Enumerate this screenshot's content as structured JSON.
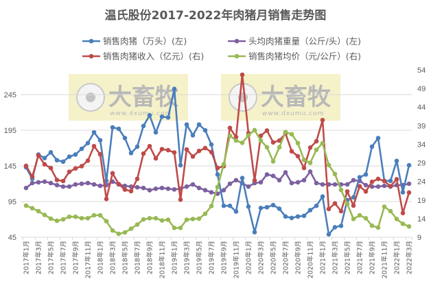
{
  "chart_data": {
    "type": "line",
    "title": "温氏股份2017-2022年肉猪月销售走势图",
    "watermark": {
      "brand": "大畜牧",
      "url": "www.dxumu.com"
    },
    "x_tick_labels": [
      "2017年1月",
      "2017年3月",
      "2017年5月",
      "2017年7月",
      "2017年9月",
      "2017年11月",
      "2018年1月",
      "2018年3月",
      "2018年5月",
      "2018年7月",
      "2018年9月",
      "2018年11月",
      "2019年1月",
      "2019年3月",
      "2019年5月",
      "2019年7月",
      "2019年9月",
      "2019年11月",
      "2020年1月",
      "2020年3月",
      "2020年5月",
      "2020年7月",
      "2020年9月",
      "2020年11月",
      "2021年1月",
      "2021年3月",
      "2021年5月",
      "2021年7月",
      "2021年9月",
      "2021年11月",
      "2022年1月",
      "2022年3月"
    ],
    "n_points": 63,
    "y_left": {
      "ticks": [
        45,
        95,
        145,
        195,
        245
      ],
      "range": [
        45,
        245
      ]
    },
    "y_right": {
      "ticks": [
        9,
        14,
        19,
        24,
        29,
        34,
        39,
        44,
        49,
        54
      ],
      "range": [
        9,
        54
      ]
    },
    "grid": true,
    "legend_placement": "top",
    "series": [
      {
        "name": "销售肉猪（万头）(左)",
        "axis": "left",
        "color": "#4a7ebb",
        "values": [
          143,
          127,
          161,
          156,
          164,
          153,
          151,
          158,
          161,
          169,
          177,
          192,
          181,
          124,
          199,
          197,
          184,
          163,
          172,
          201,
          216,
          192,
          214,
          213,
          253,
          146,
          203,
          188,
          203,
          195,
          175,
          133,
          89,
          89,
          81,
          128,
          88,
          52,
          86,
          87,
          90,
          85,
          74,
          72,
          74,
          75,
          83,
          89,
          102,
          49,
          59,
          61,
          97,
          101,
          129,
          133,
          172,
          184,
          124,
          124,
          152,
          108,
          146
        ]
      },
      {
        "name": "头均肉猪重量（公斤/头）(左)",
        "axis": "left",
        "color": "#7d60a0",
        "values": [
          114,
          121,
          122,
          123,
          121,
          118,
          116,
          116,
          119,
          120,
          121,
          119,
          117,
          118,
          123,
          119,
          117,
          116,
          115,
          114,
          111,
          113,
          114,
          113,
          112,
          113,
          116,
          119,
          114,
          111,
          108,
          106,
          111,
          120,
          125,
          121,
          116,
          121,
          122,
          133,
          131,
          125,
          136,
          121,
          122,
          125,
          137,
          121,
          119,
          119,
          119,
          119,
          119,
          125,
          124,
          118,
          116,
          116,
          117,
          116,
          118,
          118,
          120
        ]
      },
      {
        "name": "销售肉猪收入（亿元）(右)",
        "axis": "right",
        "color": "#be4b48",
        "values": [
          28.2,
          25.3,
          31.0,
          28.6,
          27.6,
          24.4,
          24.1,
          26.6,
          27.5,
          28.1,
          29.6,
          33.5,
          31.3,
          19.3,
          26.2,
          23.3,
          21.8,
          21.4,
          24.7,
          31.5,
          33.5,
          30.2,
          32.7,
          32.4,
          31.8,
          19.1,
          32.6,
          30.7,
          32.2,
          33.0,
          31.9,
          27.6,
          28.1,
          38.4,
          35.9,
          52.7,
          37.0,
          24.3,
          36.3,
          37.7,
          34.5,
          35.0,
          36.9,
          32.1,
          30.8,
          27.6,
          33.1,
          34.8,
          40.5,
          16.6,
          18.1,
          16.0,
          21.3,
          17.5,
          22.7,
          21.3,
          23.9,
          24.7,
          24.1,
          22.7,
          24.6,
          15.5,
          21.0
        ]
      },
      {
        "name": "销售肉猪均价（元/公斤）(右)",
        "axis": "right",
        "color": "#98b954",
        "values": [
          17.5,
          16.8,
          16.0,
          15.0,
          14.0,
          13.4,
          13.8,
          14.5,
          14.5,
          14.1,
          14.1,
          14.9,
          14.9,
          13.3,
          10.8,
          9.9,
          10.3,
          11.3,
          12.4,
          13.8,
          14.1,
          14.1,
          13.5,
          13.7,
          11.5,
          11.5,
          13.7,
          13.9,
          14.0,
          15.3,
          17.4,
          22.5,
          28.6,
          36.3,
          35.0,
          34.4,
          36.4,
          37.8,
          35.0,
          33.2,
          29.4,
          33.2,
          37.3,
          36.7,
          34.3,
          29.8,
          29.0,
          32.5,
          34.3,
          28.4,
          26.0,
          21.7,
          18.0,
          13.9,
          14.9,
          14.1,
          12.1,
          11.6,
          17.2,
          16.0,
          13.9,
          12.6,
          11.9
        ]
      }
    ]
  }
}
